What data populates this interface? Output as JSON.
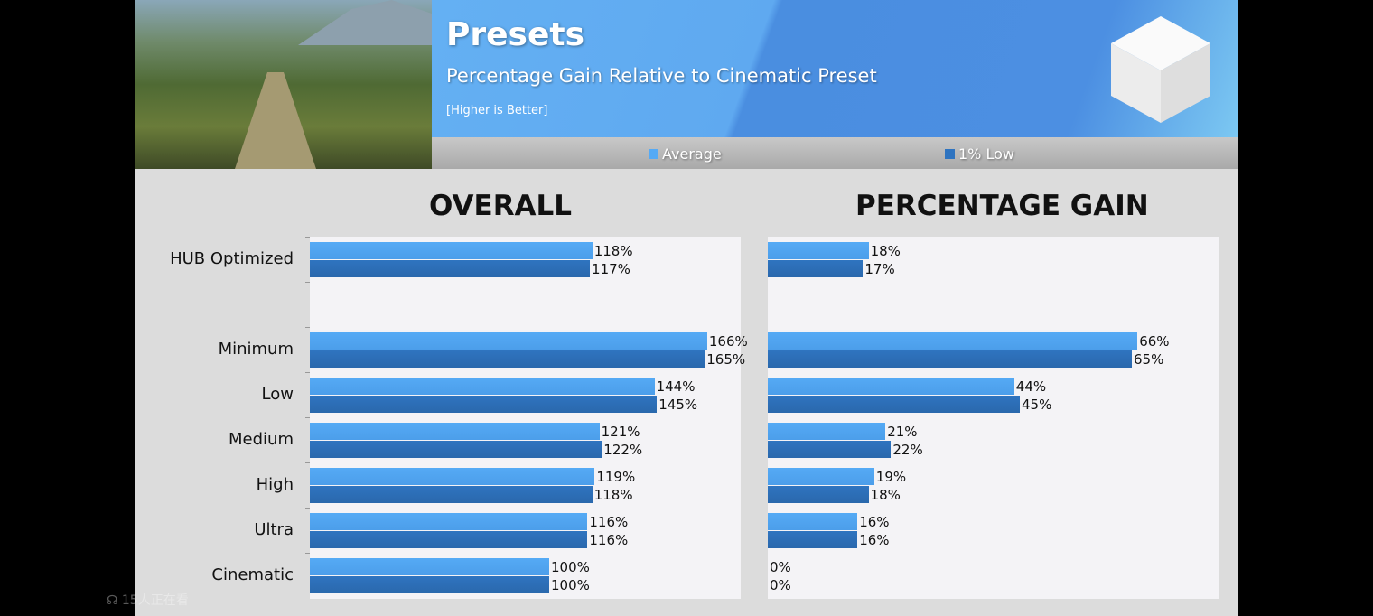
{
  "header": {
    "title": "Presets",
    "subtitle": "Percentage Gain Relative to Cinematic Preset",
    "note": "[Higher is Better]"
  },
  "legend": [
    {
      "label": "Average",
      "color": "#55aaf5"
    },
    {
      "label": "1% Low",
      "color": "#2f74c0"
    }
  ],
  "overlay": {
    "viewers_icon": "people-icon",
    "viewers_text": "15人正在看"
  },
  "chart_data": [
    {
      "type": "bar",
      "title": "OVERALL",
      "categories": [
        "HUB Optimized",
        "",
        "Minimum",
        "Low",
        "Medium",
        "High",
        "Ultra",
        "Cinematic"
      ],
      "series": [
        {
          "name": "Average",
          "values": [
            118,
            null,
            166,
            144,
            121,
            119,
            116,
            100
          ]
        },
        {
          "name": "1% Low",
          "values": [
            117,
            null,
            165,
            145,
            122,
            118,
            116,
            100
          ]
        }
      ],
      "unit": "%",
      "xlim": [
        0,
        180
      ],
      "orientation": "horizontal"
    },
    {
      "type": "bar",
      "title": "PERCENTAGE GAIN",
      "categories": [
        "HUB Optimized",
        "",
        "Minimum",
        "Low",
        "Medium",
        "High",
        "Ultra",
        "Cinematic"
      ],
      "series": [
        {
          "name": "Average",
          "values": [
            18,
            null,
            66,
            44,
            21,
            19,
            16,
            0
          ]
        },
        {
          "name": "1% Low",
          "values": [
            17,
            null,
            65,
            45,
            22,
            18,
            16,
            0
          ]
        }
      ],
      "unit": "%",
      "xlim": [
        0,
        80
      ],
      "orientation": "horizontal"
    }
  ]
}
